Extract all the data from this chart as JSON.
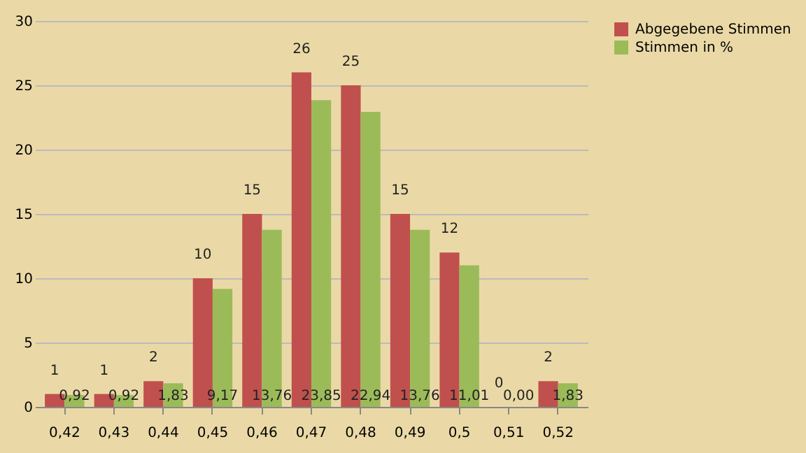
{
  "chart_data": {
    "type": "bar",
    "categories": [
      "0,42",
      "0,43",
      "0,44",
      "0,45",
      "0,46",
      "0,47",
      "0,48",
      "0,49",
      "0,5",
      "0,51",
      "0,52"
    ],
    "series": [
      {
        "name": "Abgegebene Stimmen",
        "color": "#c0504d",
        "values": [
          1,
          1,
          2,
          10,
          15,
          26,
          25,
          15,
          12,
          0,
          2
        ],
        "value_labels": [
          "1",
          "1",
          "2",
          "10",
          "15",
          "26",
          "25",
          "15",
          "12",
          "0",
          "2"
        ]
      },
      {
        "name": "Stimmen in %",
        "color": "#9bbb59",
        "values": [
          0.92,
          0.92,
          1.83,
          9.17,
          13.76,
          23.85,
          22.94,
          13.76,
          11.01,
          0.0,
          1.83
        ],
        "value_labels": [
          "0,92",
          "0,92",
          "1,83",
          "9,17",
          "13,76",
          "23,85",
          "22,94",
          "13,76",
          "11,01",
          "0,00",
          "1,83"
        ]
      }
    ],
    "ylim": [
      0,
      30
    ],
    "yticks": [
      0,
      5,
      10,
      15,
      20,
      25,
      30
    ],
    "grid": "y",
    "legend": "right"
  }
}
